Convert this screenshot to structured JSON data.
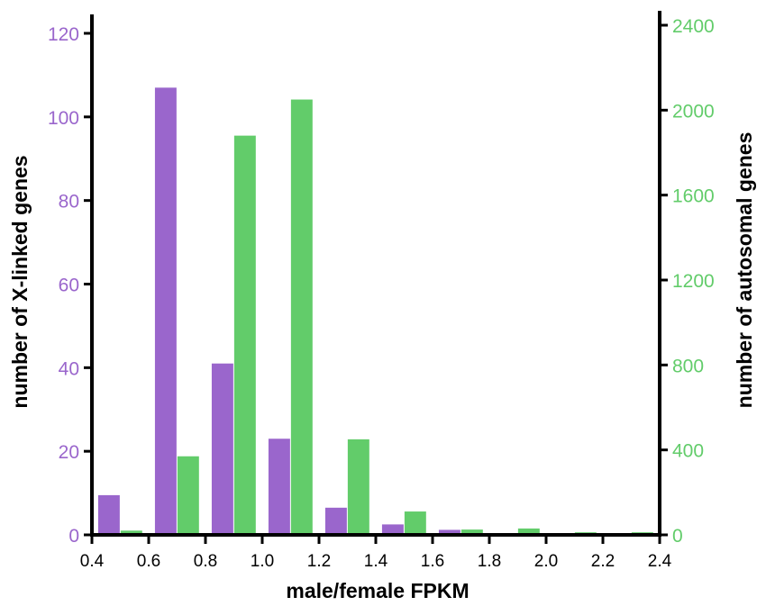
{
  "colors": {
    "xlinked": "#9a66cc",
    "autosomal": "#62cc6a",
    "axis": "#000000"
  },
  "chart_data": {
    "type": "bar",
    "xlabel": "male/female FPKM",
    "ylabel_left": "number of X-linked genes",
    "ylabel_right": "number of autosomal genes",
    "x_ticks": [
      "0.4",
      "0.6",
      "0.8",
      "1.0",
      "1.2",
      "1.4",
      "1.6",
      "1.8",
      "2.0",
      "2.2",
      "2.4"
    ],
    "y_left_ticks": [
      "0",
      "20",
      "40",
      "60",
      "80",
      "100",
      "120"
    ],
    "y_right_ticks": [
      "0",
      "400",
      "800",
      "1200",
      "1600",
      "2000",
      "2400"
    ],
    "xlim": [
      0.4,
      2.4
    ],
    "ylim_left": [
      0,
      120
    ],
    "ylim_right": [
      0,
      2400
    ],
    "bins": [
      {
        "start": 0.4,
        "end": 0.6
      },
      {
        "start": 0.6,
        "end": 0.8
      },
      {
        "start": 0.8,
        "end": 1.0
      },
      {
        "start": 1.0,
        "end": 1.2
      },
      {
        "start": 1.2,
        "end": 1.4
      },
      {
        "start": 1.4,
        "end": 1.6
      },
      {
        "start": 1.6,
        "end": 1.8
      },
      {
        "start": 1.8,
        "end": 2.0
      },
      {
        "start": 2.0,
        "end": 2.2
      },
      {
        "start": 2.2,
        "end": 2.4
      }
    ],
    "series": [
      {
        "axis": "left",
        "values": [
          9.5,
          107,
          41,
          23,
          6.5,
          2.5,
          1.2,
          0.3,
          0.2,
          0.2
        ]
      },
      {
        "axis": "right",
        "values": [
          20,
          370,
          1880,
          2050,
          450,
          110,
          25,
          30,
          12,
          12
        ]
      }
    ],
    "grid": false,
    "legend": "none"
  }
}
